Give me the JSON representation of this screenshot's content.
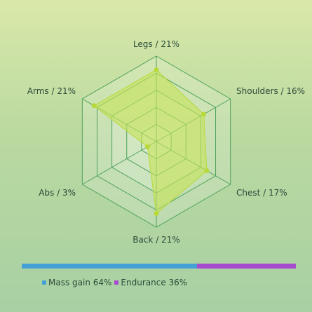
{
  "chart_data": {
    "type": "radar",
    "axes": [
      "Legs / 21%",
      "Shoulders / 16%",
      "Chest / 17%",
      "Back / 21%",
      "Abs / 3%",
      "Arms / 21%"
    ],
    "values": [
      21,
      16,
      17,
      21,
      3,
      21
    ],
    "rmax": 25,
    "grid_levels": 5,
    "fill_color": "#c6e35a",
    "point_color": "#b7d93a"
  },
  "split_bar": {
    "segments": [
      {
        "label": "Mass gain 64%",
        "value": 64,
        "color": "#45a0d6"
      },
      {
        "label": "Endurance 36%",
        "value": 36,
        "color": "#a64bcf"
      }
    ]
  }
}
